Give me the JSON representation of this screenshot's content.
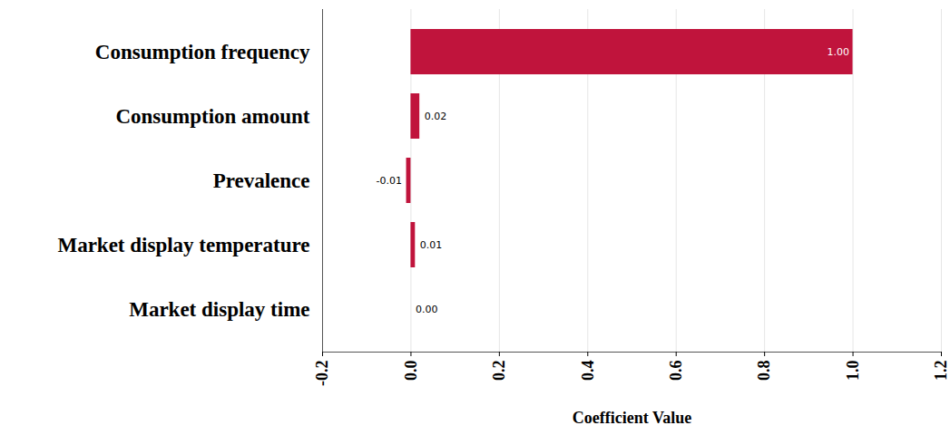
{
  "chart_data": {
    "type": "bar",
    "orientation": "horizontal",
    "categories": [
      "Consumption frequency",
      "Consumption amount",
      "Prevalence",
      "Market display temperature",
      "Market display time"
    ],
    "values": [
      1.0,
      0.02,
      -0.01,
      0.01,
      0.0
    ],
    "value_labels": [
      "1.00",
      "0.02",
      "-0.01",
      "0.01",
      "0.00"
    ],
    "data_labels": true,
    "color": "#c0143c",
    "x_label": "Coefficient Value",
    "xlim": [
      -0.2,
      1.2
    ],
    "xticks": [
      -0.2,
      {
        "value": 0,
        "label": "0.0"
      },
      0.2,
      0.4,
      0.6,
      0.8,
      {
        "value": 1,
        "label": "1.0"
      },
      1.2
    ],
    "grid": true
  }
}
